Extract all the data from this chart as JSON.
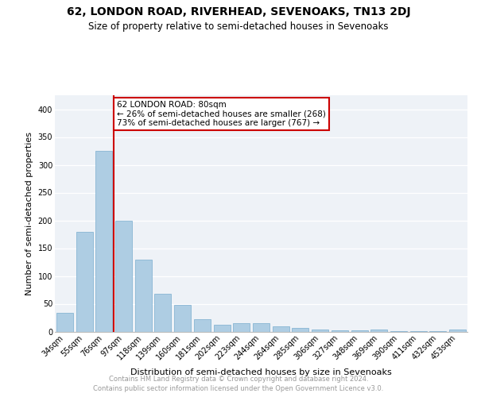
{
  "title": "62, LONDON ROAD, RIVERHEAD, SEVENOAKS, TN13 2DJ",
  "subtitle": "Size of property relative to semi-detached houses in Sevenoaks",
  "xlabel": "Distribution of semi-detached houses by size in Sevenoaks",
  "ylabel": "Number of semi-detached properties",
  "categories": [
    "34sqm",
    "55sqm",
    "76sqm",
    "97sqm",
    "118sqm",
    "139sqm",
    "160sqm",
    "181sqm",
    "202sqm",
    "223sqm",
    "244sqm",
    "264sqm",
    "285sqm",
    "306sqm",
    "327sqm",
    "348sqm",
    "369sqm",
    "390sqm",
    "411sqm",
    "432sqm",
    "453sqm"
  ],
  "values": [
    34,
    180,
    325,
    200,
    130,
    68,
    48,
    22,
    12,
    15,
    15,
    10,
    7,
    3,
    2,
    2,
    4,
    1,
    1,
    1,
    3
  ],
  "bar_color": "#aecde3",
  "bar_edge_color": "#7aaecf",
  "highlight_label": "62 LONDON ROAD: 80sqm",
  "annotation_line1": "← 26% of semi-detached houses are smaller (268)",
  "annotation_line2": "73% of semi-detached houses are larger (767) →",
  "annotation_box_color": "#ffffff",
  "annotation_box_edge_color": "#cc0000",
  "vline_color": "#cc0000",
  "vline_x_index": 2,
  "ylim": [
    0,
    425
  ],
  "yticks": [
    0,
    50,
    100,
    150,
    200,
    250,
    300,
    350,
    400
  ],
  "background_color": "#eef2f7",
  "footer_line1": "Contains HM Land Registry data © Crown copyright and database right 2024.",
  "footer_line2": "Contains public sector information licensed under the Open Government Licence v3.0.",
  "title_fontsize": 10,
  "subtitle_fontsize": 8.5,
  "xlabel_fontsize": 8,
  "ylabel_fontsize": 8,
  "tick_fontsize": 7,
  "annotation_fontsize": 7.5
}
